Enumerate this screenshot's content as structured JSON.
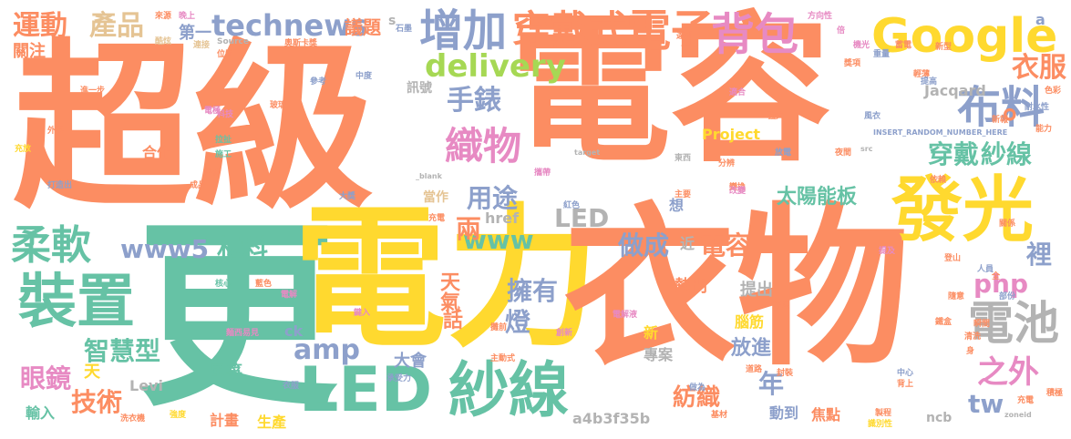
{
  "palette": {
    "orange": "#fc8d62",
    "teal": "#66c2a5",
    "yellow": "#ffd92f",
    "blue": "#8da0cb",
    "pink": "#e78ac3",
    "green": "#a6d854",
    "tan": "#e5c494",
    "gray": "#b3b3b3"
  },
  "words": [
    "超級",
    "電容",
    "更",
    "電力",
    "衣物",
    "LED",
    "紗線",
    "發光",
    "裝置",
    "Google",
    "增加",
    "穿戴式",
    "電子",
    "背包",
    "布料",
    "電池",
    "柔軟",
    "織物",
    "delivery",
    "technews",
    "產品",
    "運動",
    "手錶",
    "衣服",
    "之外",
    "穿戴",
    "紗線",
    "amp",
    "智慧型",
    "眼鏡",
    "技術",
    "www5",
    "材料",
    "www",
    "用途",
    "兩",
    "LED",
    "做成",
    "電容",
    "php",
    "裡",
    "擁有",
    "燈",
    "天氣",
    "話",
    "tw",
    "太陽能板",
    "年",
    "紡織",
    "放進",
    "提出",
    "風箏",
    "大會",
    "新",
    "熱門",
    "腦筋",
    "專案",
    "合作",
    "Project",
    "Jacqard",
    "議題",
    "第一",
    "關注",
    "訊號",
    "href",
    "Levi",
    "ck",
    "計畫",
    "生產",
    "輸入",
    "a4b3f35b",
    "動到",
    "焦點",
    "ncb",
    "天",
    "當作",
    "想",
    "近",
    "a",
    "s",
    "。",
    "INSERT_RANDOM_NUMBER_HERE",
    "_blank",
    "target",
    "src",
    "zoneid",
    "來源",
    "晚上",
    "酷炫",
    "連接",
    "Source",
    "奧斯卡獎",
    "石墨",
    "方向性",
    "倍",
    "電極",
    "電荷",
    "成品",
    "科技",
    "拉扯",
    "施工",
    "玻璃",
    "外套",
    "充放",
    "打造出",
    "大獎",
    "紅色",
    "變換",
    "依賴",
    "藍色",
    "核心",
    "電解",
    "麵西易見",
    "創新",
    "主動式",
    "承受力",
    "衣服",
    "電解液",
    "洗衣機",
    "強度",
    "基材",
    "製程",
    "識別性",
    "中心",
    "背上",
    "部份",
    "人員",
    "登山",
    "關係",
    "蓄電",
    "獎項",
    "機光",
    "重量",
    "耐水性",
    "新報",
    "風衣",
    "能力",
    "色彩",
    "新型",
    "進一步",
    "位置",
    "參考",
    "中度",
    "輕薄",
    "提高",
    "攜帶",
    "放電",
    "夜間",
    "東西",
    "分辨",
    "適合",
    "改變",
    "主要",
    "充電",
    "鍵入",
    "攤前",
    "瞬間",
    "清洗",
    "鐵盒",
    "好壞",
    "封裝",
    "做為",
    "道路",
    "隨意",
    "身",
    "充電",
    "全",
    "積極",
    "達到",
    "強大",
    "提及"
  ]
}
